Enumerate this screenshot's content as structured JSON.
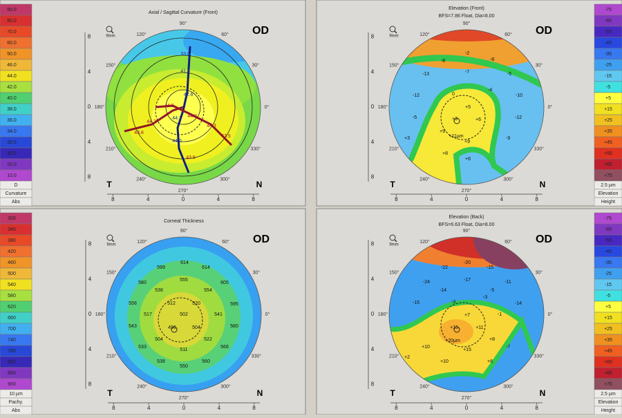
{
  "eye": "OD",
  "zoom": "9mm",
  "temporal": "T",
  "nasal": "N",
  "axis_ticks": [
    8,
    4,
    0,
    4,
    8
  ],
  "angles": [
    "90°",
    "60°",
    "30°",
    "0°",
    "330°",
    "300°",
    "270°",
    "240°",
    "210°",
    "180°",
    "150°",
    "120°"
  ],
  "panels": [
    {
      "title": "Axial / Sagittal Curvature (Front)",
      "scale": {
        "labels": [
          "90.0",
          "80.0",
          "70.0",
          "60.0",
          "50.0",
          "46.0",
          "44.0",
          "42.0",
          "40.0",
          "38.0",
          "36.0",
          "34.0",
          "32.0",
          "30.0",
          "20.0",
          "10.0"
        ],
        "colors": [
          "#c03868",
          "#d83030",
          "#e84a28",
          "#f07030",
          "#f09428",
          "#f0b838",
          "#f0e020",
          "#a8e040",
          "#50d070",
          "#40d0c8",
          "#40b0f0",
          "#3878f0",
          "#2848d8",
          "#3828b8",
          "#8038c0",
          "#b048d0"
        ]
      },
      "scale_footer": [
        "D",
        "Curvature",
        "Abs"
      ],
      "labels": [
        "33.6",
        "41.5",
        "42.6°",
        "44.5",
        "44.8",
        "44.1",
        "44.2",
        "44.3",
        "43.8",
        "43.5",
        "44.0",
        "43.5"
      ]
    },
    {
      "title": "Elevation (Front)",
      "subtitle": "BFS=7.86 Float, Dia=8.00",
      "scale": {
        "labels": [
          "-75",
          "-65",
          "-55",
          "-45",
          "-35",
          "-25",
          "-15",
          "-5",
          "+5",
          "+15",
          "+25",
          "+35",
          "+45",
          "+55",
          "+65",
          "+75"
        ],
        "colors": [
          "#b048d0",
          "#8038c0",
          "#4828c0",
          "#2848e0",
          "#3878f0",
          "#40a0f0",
          "#60c8f0",
          "#40e0e0",
          "#ffff40",
          "#f0e020",
          "#f0c020",
          "#f09020",
          "#f06020",
          "#e03020",
          "#c02030",
          "#905060"
        ]
      },
      "scale_footer": [
        "2.5 µm",
        "Elevation",
        "Height"
      ],
      "labels": [
        "-8",
        "-2",
        "-8",
        "-13",
        "-7",
        "-5",
        "-12",
        "0",
        "-4",
        "-10",
        "+5",
        "-5",
        "+3",
        "+6",
        "-12",
        "+9",
        "+11µm",
        "+9",
        "-9",
        "+3",
        "+8",
        "+6"
      ]
    },
    {
      "title": "Corneal Thickness",
      "scale": {
        "labels": [
          "300",
          "340",
          "380",
          "420",
          "460",
          "500",
          "540",
          "580",
          "620",
          "660",
          "700",
          "740",
          "780",
          "820",
          "860",
          "900"
        ],
        "colors": [
          "#c03868",
          "#d83030",
          "#e84a28",
          "#f07030",
          "#f09428",
          "#f0b838",
          "#f0e020",
          "#a8e040",
          "#50d070",
          "#40d0c8",
          "#40b0f0",
          "#3878f0",
          "#2848d8",
          "#3828b8",
          "#8038c0",
          "#b048d0"
        ]
      },
      "scale_footer": [
        "10 µm",
        "Pachy.",
        "Abs"
      ],
      "labels": [
        599,
        614,
        614,
        580,
        555,
        605,
        538,
        554,
        558,
        512,
        520,
        595,
        517,
        502,
        541,
        543,
        496,
        504,
        580,
        504,
        522,
        533,
        511,
        566,
        538,
        560,
        550
      ]
    },
    {
      "title": "Elevation (Back)",
      "subtitle": "BFS=6.63 Float, Dia=8.00",
      "scale": {
        "labels": [
          "-75",
          "-65",
          "-55",
          "-45",
          "-35",
          "-25",
          "-15",
          "-5",
          "+5",
          "+15",
          "+25",
          "+35",
          "+45",
          "+55",
          "+65",
          "+75"
        ],
        "colors": [
          "#b048d0",
          "#8038c0",
          "#4828c0",
          "#2848e0",
          "#3878f0",
          "#40a0f0",
          "#60c8f0",
          "#40e0e0",
          "#ffff40",
          "#f0e020",
          "#f0c020",
          "#f09020",
          "#f06020",
          "#e03020",
          "#c02030",
          "#905060"
        ]
      },
      "scale_footer": [
        "2.5 µm",
        "Elevation",
        "Height"
      ],
      "labels": [
        "-20",
        "-22",
        "-15",
        "-24",
        "-17",
        "-11",
        "-14",
        "-5",
        "-15",
        "-3",
        "-3",
        "-14",
        "+7",
        "-1",
        "+15",
        "+11",
        "+10",
        "+20µm",
        "+8",
        "-7",
        "+15",
        "+2",
        "+10",
        "+6"
      ]
    }
  ]
}
